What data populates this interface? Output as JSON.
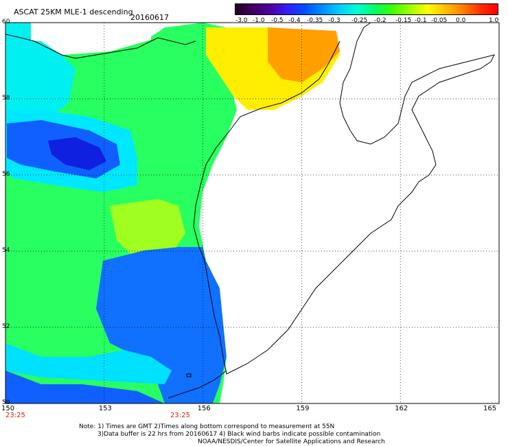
{
  "header": {
    "title": "ASCAT 25KM MLE-1 descending",
    "date": "20160617"
  },
  "colorbar": {
    "labels": [
      "-3.0",
      "-1.0",
      "-0.5",
      "-0.4",
      "-0.35",
      "-0.3",
      "-0.25",
      "-0.2",
      "-0.15",
      "-0.1",
      "-0.05",
      "0.0",
      "1.0"
    ],
    "colors": [
      "#1a001a",
      "#3a0060",
      "#5a00c8",
      "#0010ff",
      "#0060ff",
      "#00b0ff",
      "#00f0ff",
      "#00ff90",
      "#10ff10",
      "#90ff00",
      "#ffff00",
      "#ffa000",
      "#ff3000"
    ]
  },
  "map": {
    "lat_labels": [
      "60",
      "58",
      "56",
      "54",
      "52",
      "50"
    ],
    "lon_labels": [
      "150",
      "153",
      "156",
      "159",
      "162",
      "165"
    ],
    "time_labels": [
      "23:25",
      "23:25"
    ],
    "lat_range": [
      50,
      60
    ],
    "lon_range": [
      150,
      165
    ]
  },
  "notes": {
    "line1": "Note: 1) Times are GMT 2)Times along bottom correspond to measurement at 55N",
    "line2": "3)Data buffer is 22 hrs from 20160617 4) Black wind barbs indicate possible contamination",
    "line3": "NOAA/NESDIS/Center for Satellite Applications and Research"
  }
}
